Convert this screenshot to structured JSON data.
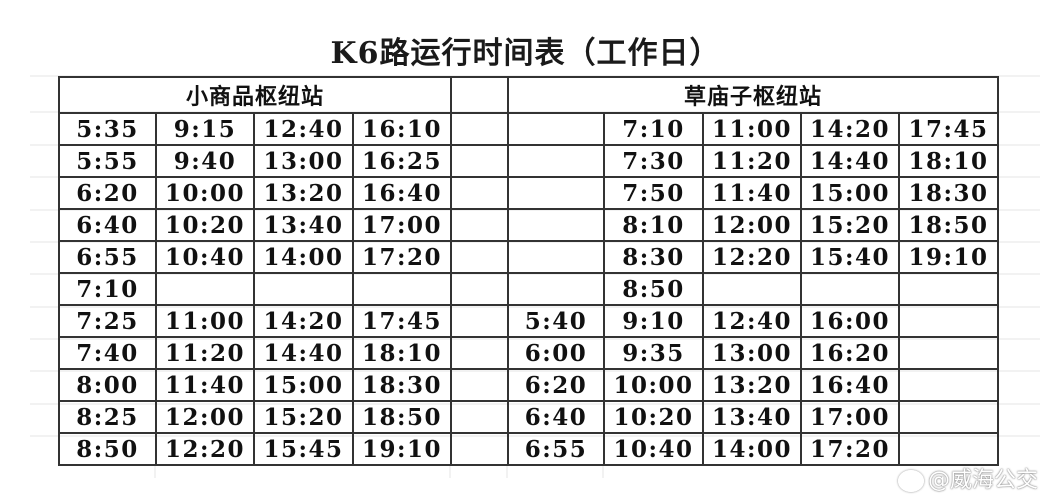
{
  "title": "K6路运行时间表（工作日）",
  "left": {
    "station": "小商品枢纽站",
    "rows": [
      [
        "5:35",
        "9:15",
        "12:40",
        "16:10"
      ],
      [
        "5:55",
        "9:40",
        "13:00",
        "16:25"
      ],
      [
        "6:20",
        "10:00",
        "13:20",
        "16:40"
      ],
      [
        "6:40",
        "10:20",
        "13:40",
        "17:00"
      ],
      [
        "6:55",
        "10:40",
        "14:00",
        "17:20"
      ],
      [
        "7:10",
        "",
        "",
        ""
      ],
      [
        "7:25",
        "11:00",
        "14:20",
        "17:45"
      ],
      [
        "7:40",
        "11:20",
        "14:40",
        "18:10"
      ],
      [
        "8:00",
        "11:40",
        "15:00",
        "18:30"
      ],
      [
        "8:25",
        "12:00",
        "15:20",
        "18:50"
      ],
      [
        "8:50",
        "12:20",
        "15:45",
        "19:10"
      ]
    ]
  },
  "right": {
    "station": "草庙子枢纽站",
    "rows": [
      [
        "",
        "7:10",
        "11:00",
        "14:20",
        "17:45"
      ],
      [
        "",
        "7:30",
        "11:20",
        "14:40",
        "18:10"
      ],
      [
        "",
        "7:50",
        "11:40",
        "15:00",
        "18:30"
      ],
      [
        "",
        "8:10",
        "12:00",
        "15:20",
        "18:50"
      ],
      [
        "",
        "8:30",
        "12:20",
        "15:40",
        "19:10"
      ],
      [
        "",
        "8:50",
        "",
        "",
        ""
      ],
      [
        "5:40",
        "9:10",
        "12:40",
        "16:00",
        ""
      ],
      [
        "6:00",
        "9:35",
        "13:00",
        "16:20",
        ""
      ],
      [
        "6:20",
        "10:00",
        "13:20",
        "16:40",
        ""
      ],
      [
        "6:40",
        "10:20",
        "13:40",
        "17:00",
        ""
      ],
      [
        "6:55",
        "10:40",
        "14:00",
        "17:20",
        ""
      ]
    ]
  },
  "watermark": "@威海公交",
  "watermark_icon": "weibo-icon"
}
